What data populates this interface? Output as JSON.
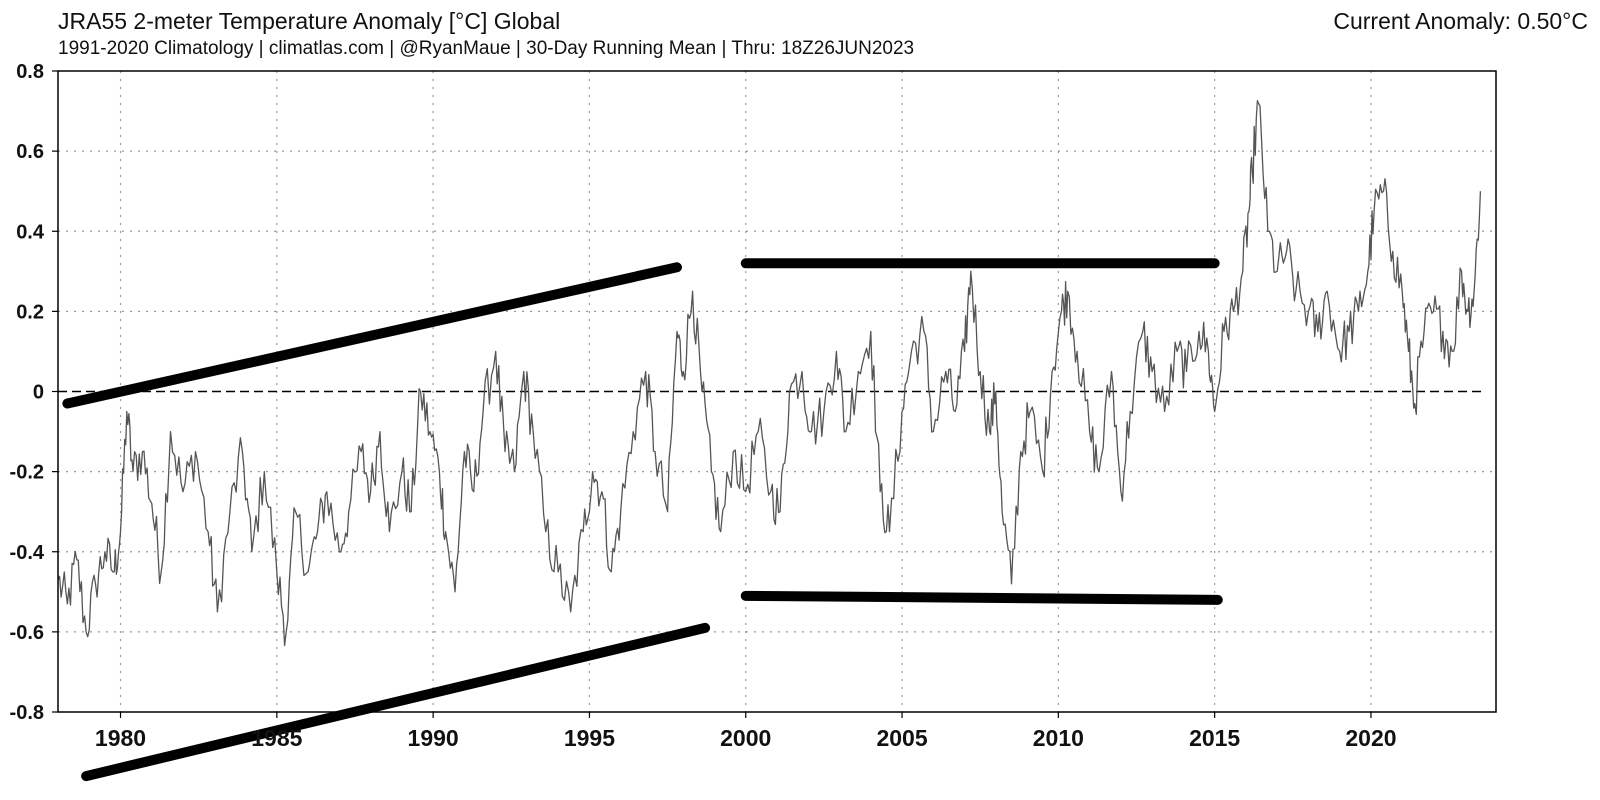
{
  "header": {
    "title": "JRA55 2-meter Temperature Anomaly [°C] Global",
    "subtitle": "1991-2020 Climatology | climatlas.com | @RyanMaue | 30-Day Running Mean | Thru: 18Z26JUN2023",
    "current_anomaly": "Current Anomaly: 0.50°C"
  },
  "chart_data": {
    "type": "line",
    "title": "JRA55 2-meter Temperature Anomaly [°C] Global",
    "subtitle": "1991-2020 Climatology | climatlas.com | @RyanMaue | 30-Day Running Mean | Thru: 18Z26JUN2023",
    "xlabel": "",
    "ylabel": "",
    "xlim": [
      1978.0,
      2024.0
    ],
    "ylim": [
      -0.8,
      0.8
    ],
    "x_ticks": [
      1980,
      1985,
      1990,
      1995,
      2000,
      2005,
      2010,
      2015,
      2020
    ],
    "x_tick_labels": [
      "1980",
      "1985",
      "1990",
      "1995",
      "2000",
      "2005",
      "2010",
      "2015",
      "2020"
    ],
    "y_ticks": [
      -0.8,
      -0.6,
      -0.4,
      -0.2,
      0,
      0.2,
      0.4,
      0.6,
      0.8
    ],
    "y_tick_labels": [
      "-0.8",
      "-0.6",
      "-0.4",
      "-0.2",
      "0",
      "0.2",
      "0.4",
      "0.6",
      "0.8"
    ],
    "grid": true,
    "zero_line": "dashed",
    "line_color": "#555555",
    "series": [
      {
        "x": [
          1978.0,
          1978.3,
          1978.6,
          1978.9,
          1979.2,
          1979.5,
          1979.8,
          1980.0,
          1980.2,
          1980.4,
          1980.7,
          1981.0,
          1981.3,
          1981.6,
          1982.0,
          1982.4,
          1982.8,
          1983.1,
          1983.5,
          1983.9,
          1984.2,
          1984.6,
          1985.0,
          1985.3,
          1985.6,
          1986.0,
          1986.3,
          1986.6,
          1987.0,
          1987.3,
          1987.7,
          1988.0,
          1988.3,
          1988.6,
          1989.0,
          1989.3,
          1989.6,
          1989.9,
          1990.2,
          1990.4,
          1990.7,
          1991.0,
          1991.3,
          1991.6,
          1992.0,
          1992.3,
          1992.6,
          1992.9,
          1993.2,
          1993.6,
          1994.0,
          1994.4,
          1994.8,
          1995.1,
          1995.4,
          1995.7,
          1996.0,
          1996.4,
          1996.8,
          1997.1,
          1997.5,
          1997.8,
          1998.0,
          1998.3,
          1998.6,
          1998.9,
          1999.2,
          1999.6,
          2000.0,
          2000.4,
          2000.8,
          2001.1,
          2001.4,
          2001.8,
          2002.1,
          2002.5,
          2002.9,
          2003.2,
          2003.6,
          2004.0,
          2004.3,
          2004.6,
          2005.0,
          2005.3,
          2005.7,
          2006.0,
          2006.4,
          2006.7,
          2007.0,
          2007.2,
          2007.5,
          2007.8,
          2008.0,
          2008.2,
          2008.5,
          2008.8,
          2009.1,
          2009.5,
          2009.8,
          2010.1,
          2010.3,
          2010.6,
          2011.0,
          2011.3,
          2011.7,
          2012.0,
          2012.3,
          2012.7,
          2013.0,
          2013.4,
          2013.8,
          2014.1,
          2014.5,
          2014.8,
          2015.0,
          2015.3,
          2015.6,
          2015.9,
          2016.1,
          2016.2,
          2016.4,
          2016.7,
          2017.0,
          2017.3,
          2017.6,
          2018.0,
          2018.3,
          2018.6,
          2019.0,
          2019.3,
          2019.6,
          2019.9,
          2020.1,
          2020.4,
          2020.7,
          2021.0,
          2021.2,
          2021.4,
          2021.7,
          2022.0,
          2022.3,
          2022.6,
          2022.9,
          2023.1,
          2023.3,
          2023.5
        ],
        "y": [
          -0.47,
          -0.53,
          -0.42,
          -0.6,
          -0.48,
          -0.4,
          -0.45,
          -0.35,
          -0.05,
          -0.2,
          -0.15,
          -0.28,
          -0.45,
          -0.1,
          -0.25,
          -0.15,
          -0.35,
          -0.55,
          -0.3,
          -0.15,
          -0.4,
          -0.2,
          -0.45,
          -0.6,
          -0.3,
          -0.45,
          -0.35,
          -0.25,
          -0.4,
          -0.3,
          -0.15,
          -0.25,
          -0.1,
          -0.35,
          -0.2,
          -0.3,
          0.0,
          -0.1,
          -0.2,
          -0.35,
          -0.5,
          -0.15,
          -0.25,
          -0.05,
          0.1,
          -0.15,
          -0.2,
          0.05,
          -0.1,
          -0.35,
          -0.45,
          -0.55,
          -0.35,
          -0.2,
          -0.25,
          -0.45,
          -0.3,
          -0.1,
          0.05,
          -0.15,
          -0.3,
          0.15,
          0.05,
          0.25,
          0.0,
          -0.2,
          -0.35,
          -0.15,
          -0.25,
          -0.1,
          -0.25,
          -0.3,
          0.0,
          0.05,
          -0.1,
          -0.05,
          0.1,
          -0.1,
          0.05,
          0.15,
          -0.25,
          -0.35,
          -0.05,
          0.1,
          0.15,
          -0.1,
          0.05,
          -0.05,
          0.1,
          0.3,
          0.05,
          -0.1,
          0.0,
          -0.3,
          -0.48,
          -0.15,
          -0.05,
          -0.2,
          0.05,
          0.2,
          0.25,
          0.1,
          -0.1,
          -0.2,
          0.05,
          -0.25,
          -0.05,
          0.15,
          0.05,
          -0.05,
          0.1,
          0.05,
          0.15,
          0.1,
          -0.05,
          0.15,
          0.2,
          0.3,
          0.45,
          0.55,
          0.72,
          0.4,
          0.3,
          0.35,
          0.25,
          0.2,
          0.15,
          0.25,
          0.1,
          0.15,
          0.2,
          0.3,
          0.45,
          0.5,
          0.35,
          0.25,
          0.1,
          -0.03,
          0.15,
          0.2,
          0.15,
          0.1,
          0.3,
          0.2,
          0.25,
          0.5
        ]
      }
    ],
    "annotation_lines": [
      {
        "name": "upper-rising-trend",
        "x": [
          1978.3,
          1997.8
        ],
        "y": [
          -0.03,
          0.31
        ]
      },
      {
        "name": "lower-rising-trend",
        "x": [
          1978.9,
          1998.7
        ],
        "y": [
          -0.96,
          -0.59
        ]
      },
      {
        "name": "upper-flat-line",
        "x": [
          2000.0,
          2015.0
        ],
        "y": [
          0.32,
          0.32
        ]
      },
      {
        "name": "lower-flat-line",
        "x": [
          2000.0,
          2015.1
        ],
        "y": [
          -0.51,
          -0.52
        ]
      }
    ]
  }
}
